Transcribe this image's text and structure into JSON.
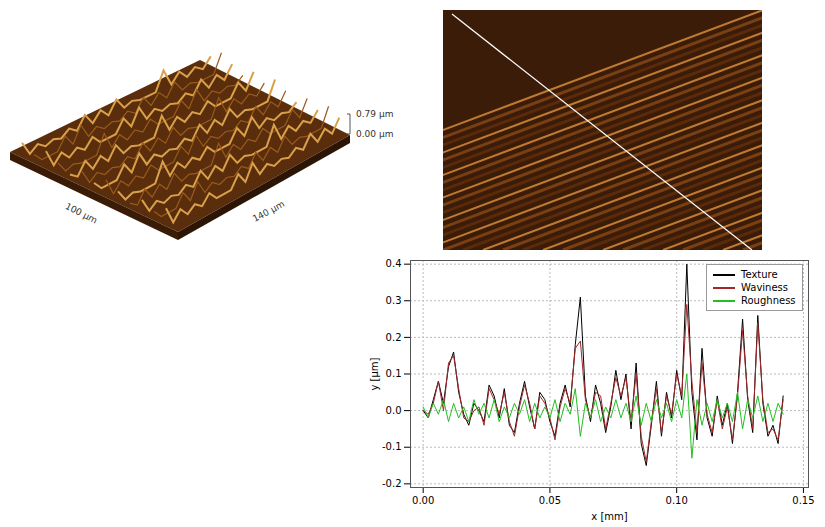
{
  "surface_3d": {
    "z_labels": [
      "0.79 µm",
      "0.00 µm"
    ],
    "axis_labels": [
      "100 µm",
      "140 µm"
    ]
  },
  "chart_data": {
    "type": "line",
    "x_label": "x [mm]",
    "y_label": "y [µm]",
    "x": [
      0,
      0.002,
      0.004,
      0.006,
      0.008,
      0.01,
      0.012,
      0.014,
      0.016,
      0.018,
      0.02,
      0.022,
      0.024,
      0.026,
      0.028,
      0.03,
      0.032,
      0.034,
      0.036,
      0.038,
      0.04,
      0.042,
      0.044,
      0.046,
      0.048,
      0.05,
      0.052,
      0.054,
      0.056,
      0.058,
      0.06,
      0.062,
      0.064,
      0.066,
      0.068,
      0.07,
      0.072,
      0.074,
      0.076,
      0.078,
      0.08,
      0.082,
      0.084,
      0.086,
      0.088,
      0.09,
      0.092,
      0.094,
      0.096,
      0.098,
      0.1,
      0.102,
      0.104,
      0.106,
      0.108,
      0.11,
      0.112,
      0.114,
      0.116,
      0.118,
      0.12,
      0.122,
      0.124,
      0.126,
      0.128,
      0.13,
      0.132,
      0.134,
      0.136,
      0.138,
      0.14,
      0.142
    ],
    "series": [
      {
        "name": "Texture",
        "color": "#000000",
        "values": [
          0.0,
          -0.02,
          0.03,
          0.08,
          0.02,
          0.12,
          0.16,
          0.05,
          -0.01,
          -0.04,
          0.02,
          0.0,
          -0.03,
          0.07,
          0.04,
          -0.02,
          0.06,
          -0.04,
          -0.06,
          0.02,
          0.08,
          0.01,
          -0.05,
          0.05,
          0.03,
          -0.03,
          -0.07,
          0.02,
          0.07,
          0.01,
          0.18,
          0.31,
          0.04,
          -0.03,
          0.07,
          0.02,
          -0.06,
          0.01,
          0.11,
          0.03,
          0.1,
          -0.05,
          0.13,
          -0.09,
          -0.15,
          -0.04,
          0.08,
          -0.07,
          0.05,
          -0.02,
          0.11,
          0.03,
          0.4,
          0.05,
          -0.08,
          0.17,
          -0.02,
          -0.07,
          0.04,
          -0.04,
          0.02,
          -0.09,
          0.05,
          0.25,
          0.03,
          -0.06,
          0.26,
          0.02,
          -0.07,
          -0.04,
          -0.09,
          0.04
        ]
      },
      {
        "name": "Waviness",
        "color": "#a0282a",
        "values": [
          0.0,
          -0.01,
          0.02,
          0.08,
          0.0,
          0.13,
          0.15,
          0.06,
          -0.02,
          -0.03,
          0.0,
          0.01,
          -0.04,
          0.06,
          0.03,
          -0.01,
          0.05,
          -0.03,
          -0.07,
          0.01,
          0.07,
          0.02,
          -0.05,
          0.04,
          0.02,
          -0.02,
          -0.08,
          0.01,
          0.06,
          0.02,
          0.17,
          0.19,
          0.03,
          -0.02,
          0.05,
          0.04,
          -0.05,
          0.02,
          0.09,
          0.04,
          0.09,
          -0.03,
          0.1,
          -0.07,
          -0.14,
          -0.03,
          0.06,
          -0.06,
          0.04,
          -0.01,
          0.1,
          0.04,
          0.29,
          0.08,
          -0.06,
          0.13,
          -0.01,
          -0.06,
          0.03,
          -0.05,
          0.01,
          -0.08,
          0.04,
          0.22,
          0.04,
          -0.05,
          0.24,
          0.03,
          -0.06,
          -0.05,
          -0.08,
          0.03
        ]
      },
      {
        "name": "Roughness",
        "color": "#22c022",
        "values": [
          0.01,
          -0.02,
          0.02,
          -0.01,
          0.03,
          -0.03,
          0.02,
          -0.02,
          0.01,
          -0.03,
          0.03,
          -0.01,
          0.02,
          -0.02,
          0.03,
          -0.03,
          0.01,
          -0.02,
          0.02,
          -0.01,
          0.03,
          -0.03,
          0.02,
          -0.02,
          0.01,
          -0.02,
          0.03,
          -0.03,
          0.02,
          -0.01,
          0.06,
          -0.07,
          0.02,
          -0.02,
          0.03,
          -0.03,
          0.01,
          -0.02,
          0.03,
          -0.02,
          0.02,
          -0.03,
          0.04,
          -0.04,
          0.02,
          -0.03,
          0.03,
          -0.02,
          0.02,
          -0.03,
          0.03,
          -0.02,
          0.1,
          -0.13,
          0.03,
          -0.04,
          0.02,
          -0.03,
          0.03,
          -0.02,
          0.02,
          -0.03,
          0.05,
          -0.05,
          0.03,
          -0.02,
          0.04,
          -0.03,
          0.02,
          -0.03,
          0.02,
          -0.01
        ]
      }
    ],
    "xlim": [
      -0.005,
      0.152
    ],
    "ylim": [
      -0.21,
      0.41
    ],
    "xticks": [
      {
        "value": 0,
        "label": "0.00"
      },
      0.05,
      {
        "value": 0.1,
        "label": "0.10"
      },
      0.15
    ],
    "yticks": [
      -0.2,
      -0.1,
      {
        "value": 0,
        "label": "0.0"
      },
      0.1,
      0.2,
      0.3,
      0.4
    ],
    "grid": true,
    "legend": "top-right"
  }
}
